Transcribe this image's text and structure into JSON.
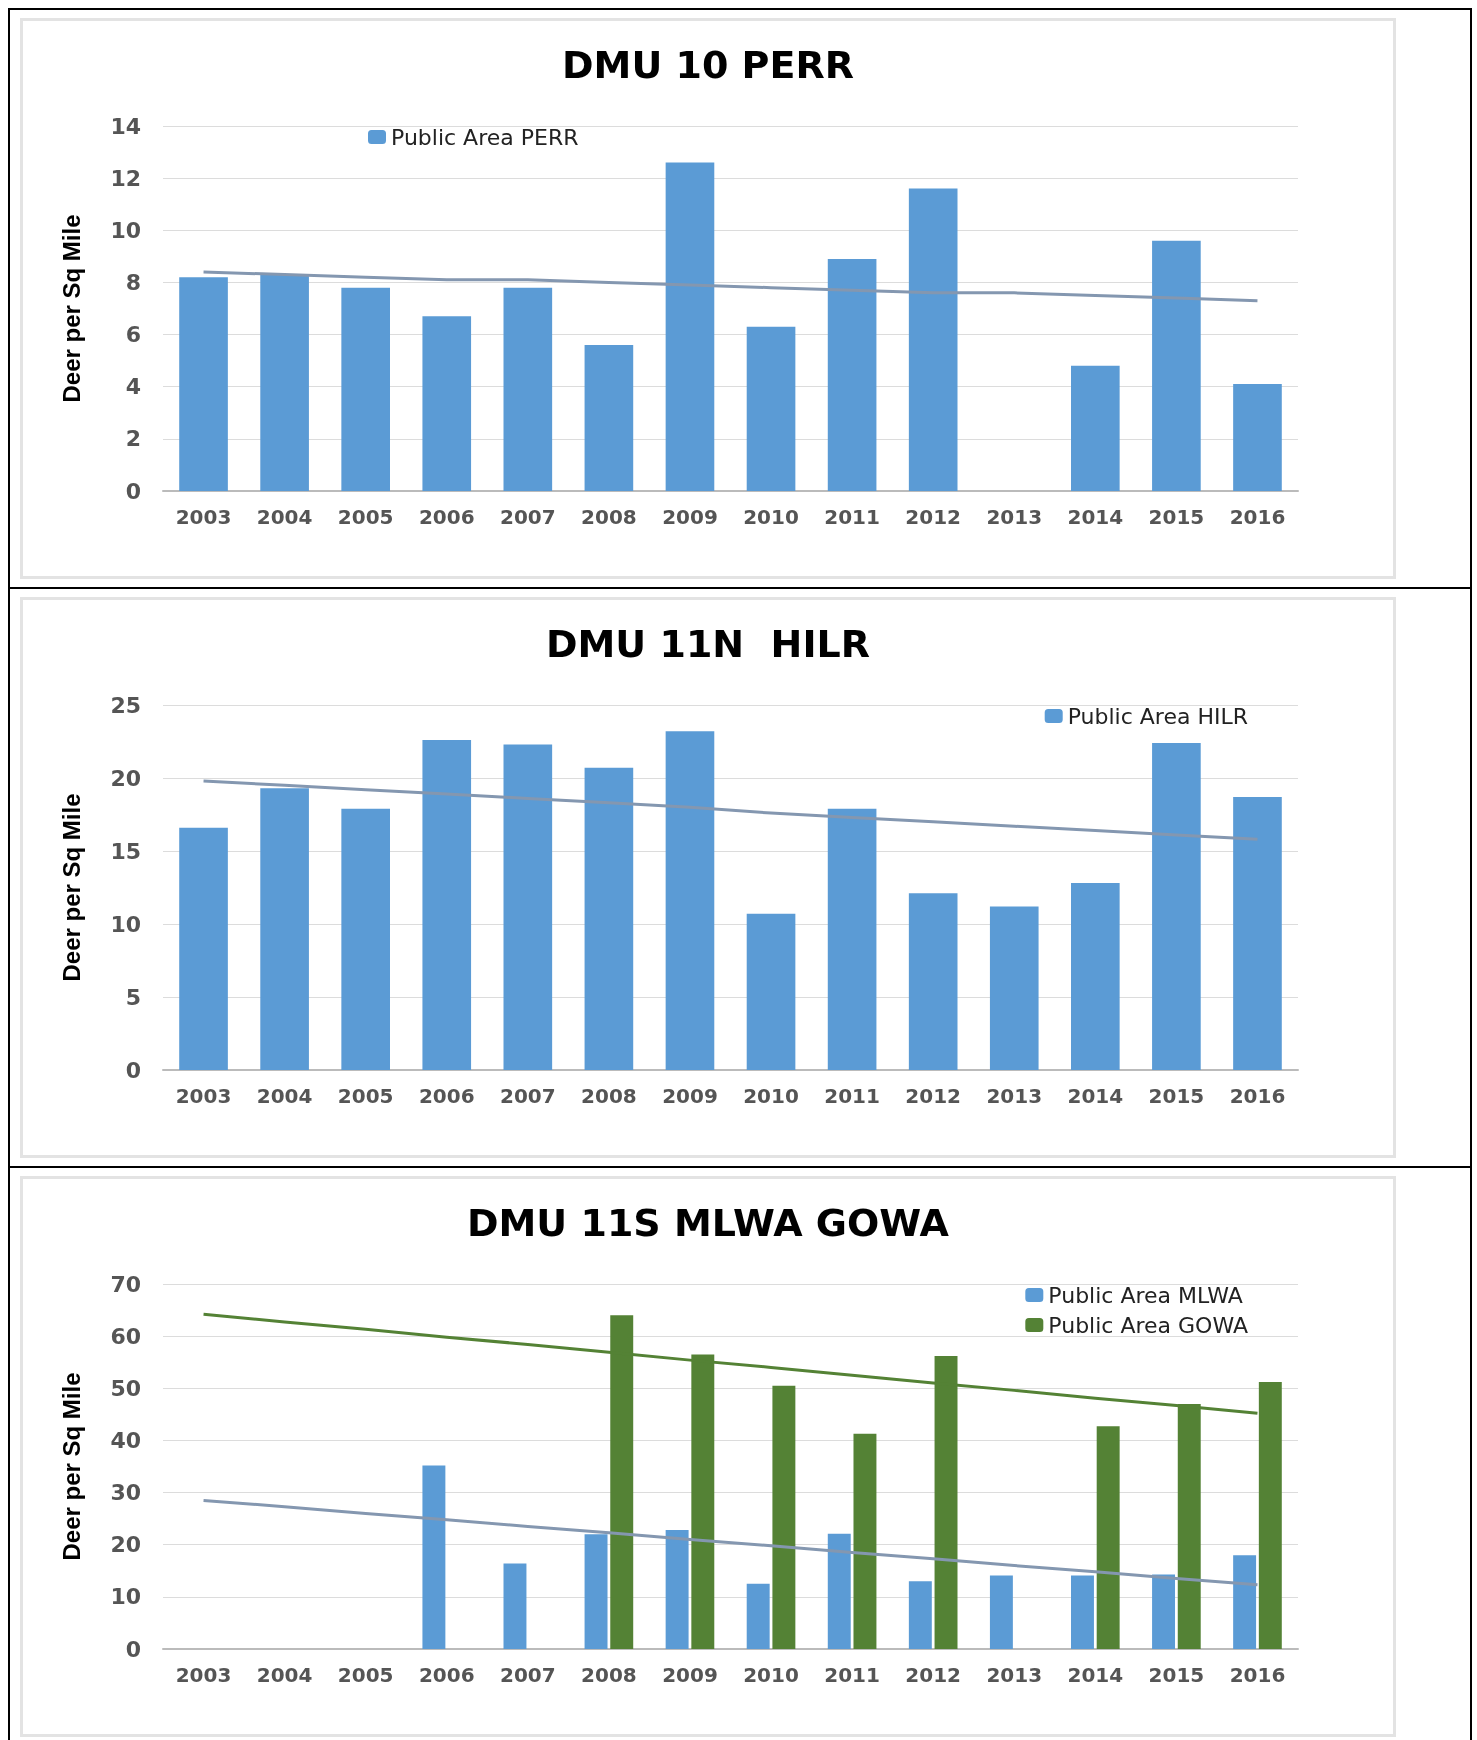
{
  "chart_data": [
    {
      "type": "bar",
      "title": "DMU 10 PERR",
      "ylabel": "Deer per Sq Mile",
      "categories": [
        "2003",
        "2004",
        "2005",
        "2006",
        "2007",
        "2008",
        "2009",
        "2010",
        "2011",
        "2012",
        "2013",
        "2014",
        "2015",
        "2016"
      ],
      "series": [
        {
          "name": "Public Area PERR",
          "color": "#5b9bd5",
          "values": [
            8.2,
            8.3,
            7.8,
            6.7,
            7.8,
            5.6,
            12.6,
            6.3,
            8.9,
            11.6,
            null,
            4.8,
            9.6,
            4.1
          ]
        },
        {
          "type": "line",
          "color": "#8497b0",
          "values": [
            8.4,
            8.3,
            8.2,
            8.1,
            8.1,
            8.0,
            7.9,
            7.8,
            7.7,
            7.6,
            7.6,
            7.5,
            7.4,
            7.3
          ]
        }
      ],
      "ylim": [
        0,
        14
      ],
      "yticks": [
        0,
        2,
        4,
        6,
        8,
        10,
        12,
        14
      ],
      "grid": "y",
      "legend": "top left",
      "marker": "none",
      "line_style": "solid"
    },
    {
      "type": "bar",
      "title": "DMU 11N  HILR",
      "ylabel": "Deer per Sq Mile",
      "categories": [
        "2003",
        "2004",
        "2005",
        "2006",
        "2007",
        "2008",
        "2009",
        "2010",
        "2011",
        "2012",
        "2013",
        "2014",
        "2015",
        "2016"
      ],
      "series": [
        {
          "name": "Public Area HILR",
          "color": "#5b9bd5",
          "values": [
            16.6,
            19.3,
            17.9,
            22.6,
            22.3,
            20.7,
            23.2,
            10.7,
            17.9,
            12.1,
            11.2,
            12.8,
            22.4,
            18.7
          ]
        },
        {
          "type": "line",
          "color": "#8497b0",
          "values": [
            19.8,
            19.5,
            19.2,
            18.9,
            18.6,
            18.3,
            18.0,
            17.6,
            17.3,
            17.0,
            16.7,
            16.4,
            16.1,
            15.8
          ]
        }
      ],
      "ylim": [
        0,
        25
      ],
      "yticks": [
        0,
        5,
        10,
        15,
        20,
        25
      ],
      "grid": "y",
      "legend": "top right",
      "marker": "none",
      "line_style": "solid"
    },
    {
      "type": "bar",
      "title": "DMU 11S MLWA GOWA",
      "ylabel": "Deer per Sq Mile",
      "categories": [
        "2003",
        "2004",
        "2005",
        "2006",
        "2007",
        "2008",
        "2009",
        "2010",
        "2011",
        "2012",
        "2013",
        "2014",
        "2015",
        "2016"
      ],
      "series": [
        {
          "name": "Public Area MLWA",
          "color": "#5b9bd5",
          "values": [
            null,
            null,
            null,
            35.2,
            16.4,
            22,
            22.8,
            12.5,
            22.1,
            13,
            14.1,
            14.1,
            14.3,
            18
          ]
        },
        {
          "name": "Public Area GOWA",
          "color": "#548235",
          "values": [
            null,
            null,
            null,
            null,
            null,
            64,
            56.5,
            50.5,
            41.3,
            56.2,
            null,
            42.7,
            47,
            51.2
          ]
        },
        {
          "type": "line",
          "color": "#548235",
          "values": [
            64.2,
            62.7,
            61.3,
            59.8,
            58.4,
            56.9,
            55.4,
            54.0,
            52.5,
            51.0,
            49.6,
            48.1,
            46.7,
            45.2
          ]
        },
        {
          "type": "line",
          "color": "#8497b0",
          "values": [
            28.5,
            27.3,
            26.0,
            24.8,
            23.5,
            22.3,
            21.0,
            19.8,
            18.5,
            17.3,
            16.0,
            14.8,
            13.5,
            12.3
          ]
        }
      ],
      "ylim": [
        0,
        70
      ],
      "yticks": [
        0,
        10,
        20,
        30,
        40,
        50,
        60,
        70
      ],
      "grid": "y",
      "legend": "top right",
      "marker": "none",
      "line_style": "solid"
    }
  ]
}
